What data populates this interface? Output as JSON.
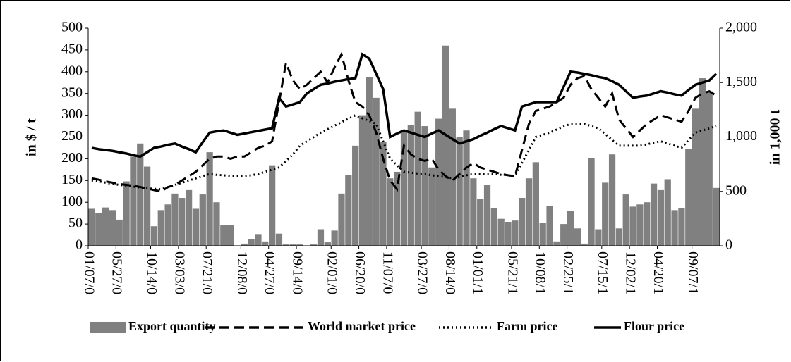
{
  "chart_data": {
    "type": "bar-line",
    "categories": [
      "01/07/0",
      null,
      null,
      null,
      "05/27/0",
      null,
      null,
      null,
      null,
      "10/14/0",
      null,
      null,
      null,
      "03/03/0",
      null,
      null,
      null,
      "07/21/0",
      null,
      null,
      null,
      null,
      "12/08/0",
      null,
      null,
      null,
      "04/27/0",
      null,
      null,
      null,
      "09/14/0",
      null,
      null,
      null,
      null,
      "02/01/0",
      null,
      null,
      null,
      "06/20/0",
      null,
      null,
      null,
      "11/07/0",
      null,
      null,
      null,
      null,
      "03/27/0",
      null,
      null,
      null,
      "08/14/0",
      null,
      null,
      null,
      "01/01/1",
      null,
      null,
      null,
      null,
      "05/21/1",
      null,
      null,
      null,
      "10/08/1",
      null,
      null,
      null,
      "02/25/1",
      null,
      null,
      null,
      null,
      "07/15/1",
      null,
      null,
      null,
      "12/02/1",
      null,
      null,
      null,
      "04/20/1",
      null,
      null,
      null,
      null,
      "09/07/1",
      null,
      null,
      null
    ],
    "y_label": "in $ / t",
    "y2_label": "in 1,000 t",
    "ylim": [
      0,
      500
    ],
    "yticks": [
      0,
      50,
      100,
      150,
      200,
      250,
      300,
      350,
      400,
      450,
      500
    ],
    "y2lim": [
      0,
      2000
    ],
    "y2ticks": [
      0,
      500,
      {
        "value": 1000,
        "label": "1,000"
      },
      {
        "value": 1500,
        "label": "1,500"
      },
      {
        "value": 2000,
        "label": "2,000"
      }
    ],
    "series": [
      {
        "name": "Export quantity",
        "type": "bar",
        "axis": "y2",
        "color": "#808080",
        "values": [
          340,
          300,
          352,
          328,
          240,
          592,
          820,
          940,
          728,
          180,
          328,
          380,
          480,
          440,
          512,
          340,
          472,
          860,
          400,
          192,
          192,
          0,
          20,
          60,
          108,
          40,
          740,
          112,
          12,
          12,
          12,
          0,
          12,
          152,
          32,
          140,
          480,
          648,
          920,
          1200,
          1552,
          1360,
          952,
          620,
          680,
          1060,
          1112,
          1232,
          1100,
          720,
          1168,
          1840,
          1260,
          1000,
          1060,
          620,
          432,
          560,
          348,
          248,
          220,
          232,
          440,
          620,
          768,
          208,
          368,
          40,
          200,
          320,
          160,
          20,
          808,
          152,
          580,
          840,
          160,
          472,
          360,
          380,
          400,
          572,
          512,
          612,
          328,
          344,
          888,
          1260,
          1540,
          1420,
          532
        ]
      },
      {
        "name": "World market price",
        "type": "line",
        "style": "dashed",
        "color": "#000000",
        "values": [
          155,
          152,
          148,
          145,
          142,
          140,
          138,
          135,
          132,
          128,
          125,
          135,
          140,
          150,
          160,
          170,
          185,
          200,
          205,
          205,
          200,
          205,
          205,
          215,
          225,
          230,
          240,
          330,
          420,
          380,
          360,
          370,
          385,
          400,
          375,
          410,
          440,
          380,
          330,
          320,
          300,
          260,
          200,
          150,
          130,
          230,
          210,
          200,
          195,
          200,
          175,
          160,
          150,
          165,
          180,
          190,
          180,
          175,
          170,
          165,
          162,
          160,
          220,
          280,
          310,
          315,
          320,
          330,
          340,
          370,
          385,
          390,
          360,
          340,
          320,
          350,
          290,
          270,
          250,
          265,
          280,
          290,
          300,
          295,
          290,
          285,
          310,
          340,
          350,
          355,
          345
        ]
      },
      {
        "name": "Farm price",
        "type": "line",
        "style": "dotted",
        "color": "#000000",
        "values": [
          150,
          148,
          145,
          142,
          140,
          138,
          136,
          134,
          132,
          131,
          130,
          135,
          140,
          145,
          150,
          155,
          160,
          165,
          163,
          162,
          160,
          160,
          160,
          162,
          165,
          170,
          175,
          180,
          195,
          210,
          230,
          240,
          250,
          260,
          268,
          276,
          284,
          292,
          300,
          293,
          287,
          280,
          240,
          200,
          185,
          170,
          168,
          166,
          165,
          162,
          160,
          158,
          155,
          158,
          162,
          165,
          165,
          165,
          165,
          163,
          162,
          160,
          190,
          220,
          250,
          255,
          260,
          267,
          274,
          280,
          280,
          280,
          275,
          270,
          257,
          243,
          230,
          230,
          230,
          230,
          233,
          237,
          240,
          235,
          230,
          225,
          243,
          260,
          265,
          270,
          275
        ]
      },
      {
        "name": "Flour price",
        "type": "line",
        "style": "solid",
        "color": "#000000",
        "values": [
          225,
          222,
          220,
          218,
          215,
          212,
          208,
          205,
          215,
          225,
          228,
          232,
          235,
          228,
          222,
          215,
          238,
          260,
          263,
          265,
          260,
          255,
          258,
          261,
          264,
          267,
          270,
          340,
          320,
          325,
          330,
          350,
          360,
          370,
          373,
          377,
          380,
          383,
          385,
          440,
          430,
          395,
          360,
          250,
          258,
          265,
          260,
          255,
          250,
          258,
          265,
          255,
          245,
          235,
          240,
          245,
          253,
          260,
          268,
          275,
          270,
          265,
          320,
          325,
          330,
          330,
          330,
          330,
          365,
          400,
          398,
          395,
          392,
          388,
          385,
          378,
          370,
          355,
          340,
          343,
          345,
          350,
          355,
          352,
          348,
          345,
          358,
          370,
          375,
          380,
          395
        ]
      }
    ]
  }
}
